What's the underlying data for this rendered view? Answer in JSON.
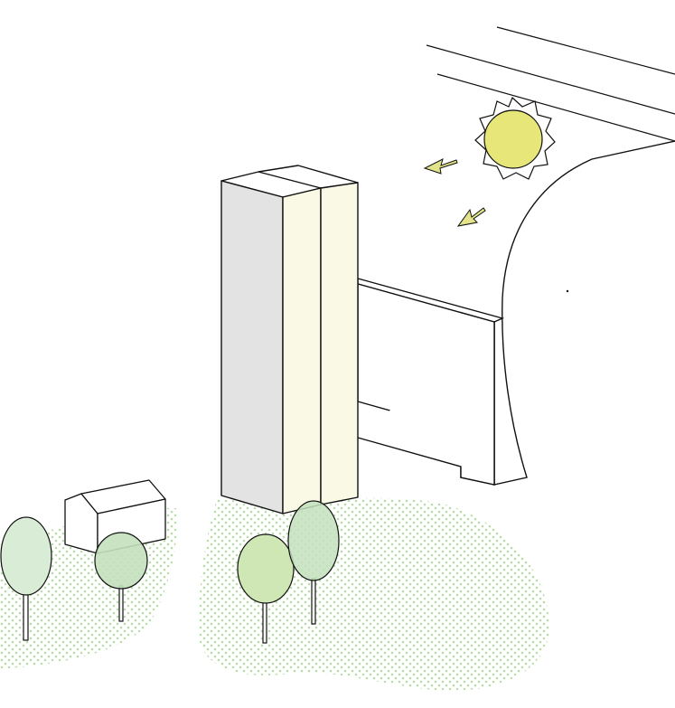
{
  "diagram": {
    "description_visible_text": "",
    "colors": {
      "background": "#ffffff",
      "stroke": "#111111",
      "sun": "#e6e679",
      "arrow": "#e3e38a",
      "facade_shadow": "#e3e3e3",
      "facade_light": "#f9f9e6",
      "ground_dots": "#b9dda9",
      "tree_light": "#d9ecd6",
      "tree_mid": "#c3e0bd",
      "tree_bright": "#cfe6b5"
    },
    "icons": [
      "sun-icon",
      "arrow-icon",
      "tree-icon",
      "house-icon",
      "tower-icon",
      "canopy-icon"
    ]
  }
}
